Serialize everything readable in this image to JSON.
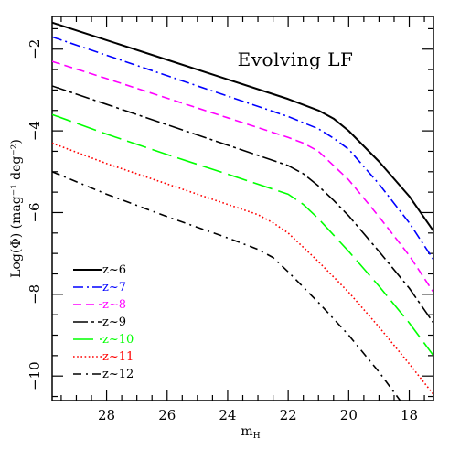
{
  "chart_data": {
    "type": "line",
    "title": "Evolving LF",
    "xlabel": "m_H",
    "xlabel_main": "m",
    "xlabel_sub": "H",
    "ylabel": "Log(Φ) (mag⁻¹ deg⁻²)",
    "xlim": [
      29.8,
      17.2
    ],
    "ylim": [
      -10.6,
      -1.2
    ],
    "x_reversed": true,
    "xticks": [
      28,
      26,
      24,
      22,
      20,
      18
    ],
    "yticks": [
      -2,
      -4,
      -6,
      -8,
      -10
    ],
    "grid": false,
    "legend_position": "bottom-left",
    "series": [
      {
        "name": "z~6",
        "color": "#000000",
        "dash": "solid",
        "x": [
          29.8,
          28,
          26,
          24,
          22,
          21,
          20.5,
          20,
          19,
          18,
          17.2
        ],
        "y": [
          -1.35,
          -1.78,
          -2.26,
          -2.74,
          -3.22,
          -3.5,
          -3.7,
          -4.0,
          -4.75,
          -5.6,
          -6.45
        ]
      },
      {
        "name": "z~7",
        "color": "#0000ff",
        "dash": "dashdot",
        "x": [
          29.8,
          28,
          26,
          24,
          22,
          21,
          20.5,
          20,
          19,
          18,
          17.2
        ],
        "y": [
          -1.7,
          -2.15,
          -2.65,
          -3.15,
          -3.65,
          -3.95,
          -4.18,
          -4.45,
          -5.3,
          -6.25,
          -7.15
        ]
      },
      {
        "name": "z~8",
        "color": "#ff00ff",
        "dash": "dashed",
        "x": [
          29.8,
          28,
          26,
          24,
          22,
          21.5,
          21,
          20.5,
          20,
          19,
          18,
          17.2
        ],
        "y": [
          -2.3,
          -2.72,
          -3.2,
          -3.68,
          -4.16,
          -4.3,
          -4.5,
          -4.85,
          -5.2,
          -6.1,
          -7.05,
          -7.95
        ]
      },
      {
        "name": "z~9",
        "color": "#000000",
        "dash": "dashdotlong",
        "x": [
          29.8,
          28,
          26,
          24,
          22,
          21.5,
          21,
          20.5,
          20,
          19,
          18,
          17.2
        ],
        "y": [
          -2.9,
          -3.35,
          -3.85,
          -4.35,
          -4.85,
          -5.05,
          -5.35,
          -5.7,
          -6.08,
          -6.95,
          -7.85,
          -8.7
        ]
      },
      {
        "name": "z~10",
        "color": "#00ff00",
        "dash": "longdash",
        "x": [
          29.8,
          28,
          26,
          24,
          22,
          21.5,
          21,
          20.5,
          20,
          19,
          18,
          17.2
        ],
        "y": [
          -3.6,
          -4.08,
          -4.58,
          -5.06,
          -5.55,
          -5.8,
          -6.15,
          -6.55,
          -6.95,
          -7.8,
          -8.7,
          -9.5
        ]
      },
      {
        "name": "z~11",
        "color": "#ff0000",
        "dash": "dotted",
        "x": [
          29.8,
          28,
          26,
          24,
          23,
          22.5,
          22,
          21,
          20,
          19,
          18,
          17.2
        ],
        "y": [
          -4.3,
          -4.8,
          -5.3,
          -5.8,
          -6.05,
          -6.25,
          -6.5,
          -7.2,
          -7.95,
          -8.8,
          -9.7,
          -10.45
        ]
      },
      {
        "name": "z~12",
        "color": "#000000",
        "dash": "shortdashdot",
        "x": [
          29.8,
          28,
          26,
          24,
          23,
          22.5,
          22,
          21,
          20,
          19,
          18.3
        ],
        "y": [
          -5.0,
          -5.55,
          -6.1,
          -6.62,
          -6.9,
          -7.1,
          -7.45,
          -8.2,
          -9.0,
          -9.9,
          -10.6
        ]
      }
    ]
  }
}
